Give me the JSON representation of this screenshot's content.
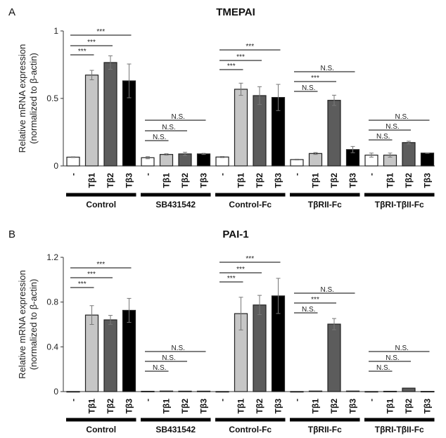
{
  "chart_data": [
    {
      "type": "bar",
      "panel_label": "A",
      "title": "TMEPAI",
      "ylabel": [
        "Relative mRNA expression",
        "(normalized to β-actin)"
      ],
      "ylim": [
        0,
        1
      ],
      "yticks": [
        "0",
        "0.5",
        "1"
      ],
      "ytick_values": [
        0,
        0.5,
        1
      ],
      "categories": [
        "-",
        "Tβ1",
        "Tβ2",
        "Tβ3"
      ],
      "groups": [
        {
          "name": "Control",
          "values": [
            0.065,
            0.673,
            0.766,
            0.63
          ],
          "errors": [
            0.003,
            0.035,
            0.05,
            0.125
          ],
          "comparisons": [
            "***",
            "***",
            "***"
          ]
        },
        {
          "name": "SB431542",
          "values": [
            0.061,
            0.085,
            0.089,
            0.089
          ],
          "errors": [
            0.008,
            0.005,
            0.012,
            0.004
          ],
          "comparisons": [
            "N.S.",
            "N.S.",
            "N.S."
          ]
        },
        {
          "name": "Control-Fc",
          "values": [
            0.066,
            0.568,
            0.521,
            0.507
          ],
          "errors": [
            0.004,
            0.045,
            0.066,
            0.097
          ],
          "comparisons": [
            "***",
            "***",
            "***"
          ]
        },
        {
          "name": "TβRII-Fc",
          "values": [
            0.047,
            0.092,
            0.486,
            0.121
          ],
          "errors": [
            0.003,
            0.007,
            0.038,
            0.023
          ],
          "comparisons": [
            "N.S.",
            "***",
            "N.S."
          ]
        },
        {
          "name": "TβRI-TβII-Fc",
          "values": [
            0.08,
            0.08,
            0.173,
            0.095
          ],
          "errors": [
            0.015,
            0.015,
            0.01,
            0.002
          ],
          "comparisons": [
            "N.S.",
            "N.S.",
            "N.S."
          ]
        }
      ],
      "colors": [
        "#ffffff",
        "#c6c6c6",
        "#5c5c5c",
        "#000000"
      ]
    },
    {
      "type": "bar",
      "panel_label": "B",
      "title": "PAI-1",
      "ylabel": [
        "Relative mRNA expression",
        "(normalized to β-actin)"
      ],
      "ylim": [
        0,
        1.2
      ],
      "yticks": [
        "0",
        "0.4",
        "0.8",
        "1.2"
      ],
      "ytick_values": [
        0,
        0.4,
        0.8,
        1.2
      ],
      "categories": [
        "-",
        "Tβ1",
        "Tβ2",
        "Tβ3"
      ],
      "groups": [
        {
          "name": "Control",
          "values": [
            0.001,
            0.684,
            0.641,
            0.726
          ],
          "errors": [
            0,
            0.084,
            0.04,
            0.107
          ],
          "comparisons": [
            "***",
            "***",
            "***"
          ]
        },
        {
          "name": "SB431542",
          "values": [
            0.003,
            0.005,
            0.004,
            0.004
          ],
          "errors": [
            0,
            0,
            0,
            0
          ],
          "comparisons": [
            "N.S.",
            "N.S.",
            "N.S."
          ]
        },
        {
          "name": "Control-Fc",
          "values": [
            0.001,
            0.697,
            0.774,
            0.855
          ],
          "errors": [
            0,
            0.146,
            0.086,
            0.157
          ],
          "comparisons": [
            "***",
            "***",
            "***"
          ]
        },
        {
          "name": "TβRII-Fc",
          "values": [
            0.001,
            0.005,
            0.603,
            0.005
          ],
          "errors": [
            0,
            0,
            0.05,
            0
          ],
          "comparisons": [
            "N.S.",
            "***",
            "N.S."
          ]
        },
        {
          "name": "TβRI-TβII-Fc",
          "values": [
            0.001,
            0.003,
            0.031,
            0.002
          ],
          "errors": [
            0,
            0,
            0,
            0
          ],
          "comparisons": [
            "N.S.",
            "N.S.",
            "N.S."
          ]
        }
      ],
      "colors": [
        "#ffffff",
        "#c6c6c6",
        "#5c5c5c",
        "#000000"
      ]
    }
  ]
}
